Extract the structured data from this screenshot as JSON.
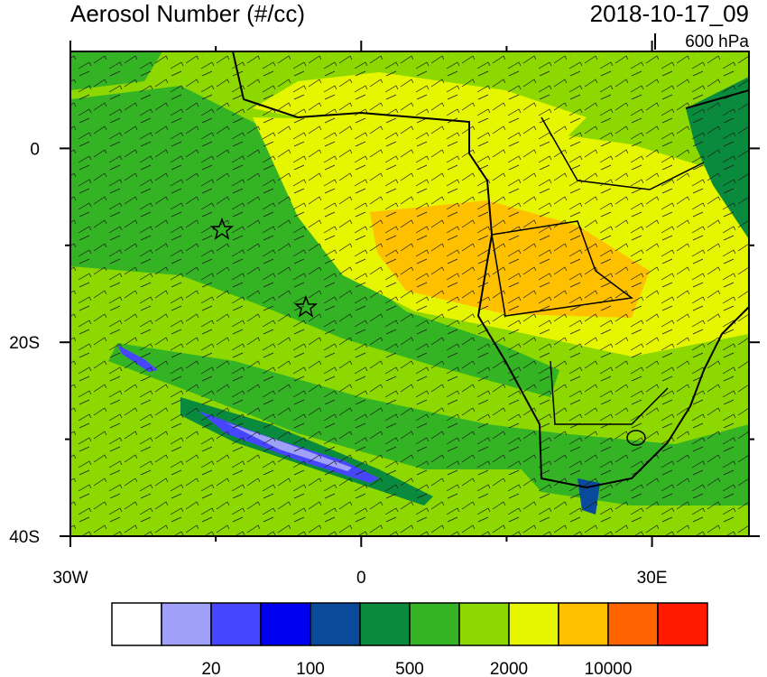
{
  "header": {
    "title": "Aerosol Number (#/cc)",
    "date": "2018-10-17_09",
    "level": "600 hPa"
  },
  "map": {
    "lonlim": [
      -30,
      40
    ],
    "latlim": [
      -40,
      10
    ],
    "lon_ticks": [
      {
        "value": -30,
        "label": "30W"
      },
      {
        "value": 0,
        "label": "0"
      },
      {
        "value": 30,
        "label": "30E"
      }
    ],
    "lat_ticks": [
      {
        "value": 0,
        "label": "0"
      },
      {
        "value": -20,
        "label": "20S"
      },
      {
        "value": -40,
        "label": "40S"
      }
    ]
  },
  "colorbar": {
    "colors": [
      "#ffffff",
      "#a0a0f8",
      "#4646ff",
      "#0000f0",
      "#0a4a9a",
      "#0a8a3c",
      "#34b424",
      "#8cd800",
      "#e6f500",
      "#ffc000",
      "#ff6400",
      "#ff1a00"
    ],
    "labels": [
      20,
      100,
      500,
      2000,
      10000
    ]
  }
}
